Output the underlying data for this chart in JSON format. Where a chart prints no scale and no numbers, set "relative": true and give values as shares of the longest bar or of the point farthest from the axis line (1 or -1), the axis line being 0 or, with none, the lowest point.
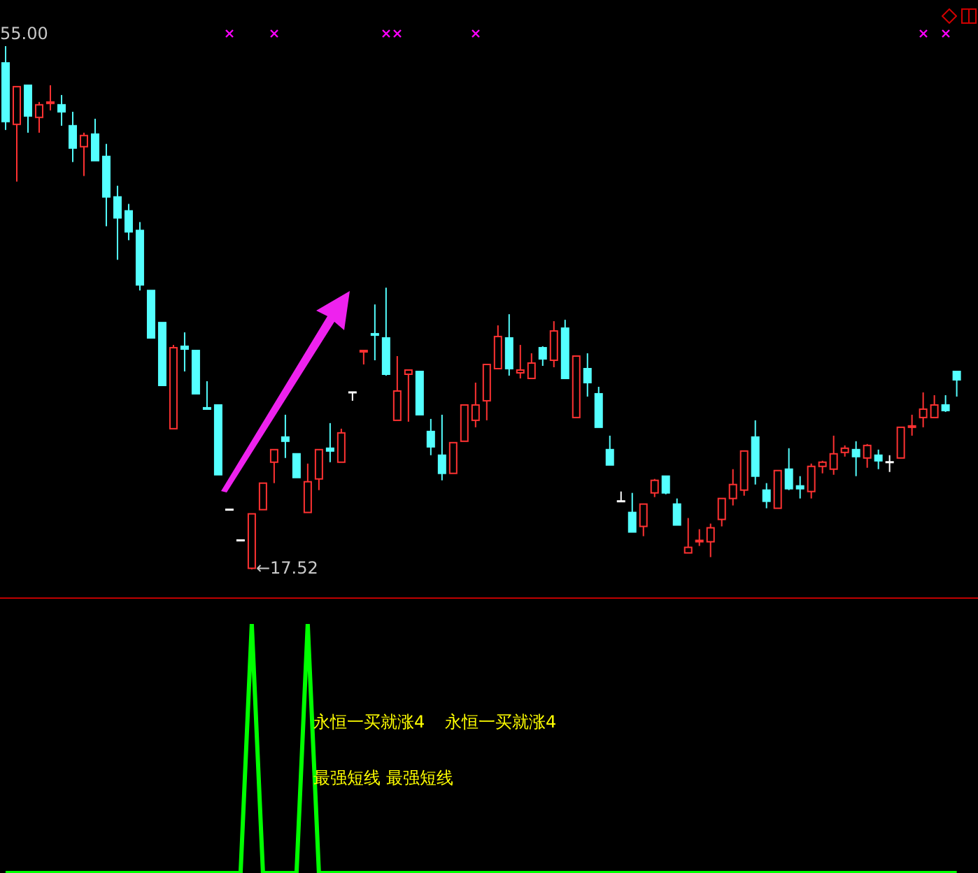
{
  "chart_data": [
    {
      "type": "candlestick",
      "categories": [
        null,
        null,
        null,
        null,
        null,
        null,
        null,
        null,
        null,
        null,
        null,
        null,
        null,
        null,
        null,
        null,
        null,
        null,
        null,
        null,
        null,
        null,
        null,
        null,
        null,
        null,
        null,
        null,
        null,
        null,
        null,
        null,
        null,
        null,
        null,
        null,
        null,
        null,
        null,
        null,
        null,
        null,
        null,
        null,
        null,
        null,
        null,
        null,
        null,
        null,
        null,
        null,
        null,
        null,
        null,
        null,
        null,
        null,
        null,
        null,
        null,
        null,
        null,
        null,
        null,
        null,
        null,
        null,
        null,
        null,
        null,
        null,
        null,
        null,
        null,
        null,
        null,
        null,
        null,
        null,
        null,
        null,
        null,
        null,
        null,
        null
      ],
      "ohlc": [
        [
          53.8,
          55.0,
          49.0,
          49.6
        ],
        [
          49.4,
          52.1,
          45.3,
          52.1
        ],
        [
          52.2,
          52.2,
          48.8,
          50.0
        ],
        [
          49.9,
          51.0,
          48.8,
          50.8
        ],
        [
          50.9,
          52.2,
          50.4,
          51.0
        ],
        [
          50.8,
          51.5,
          49.3,
          50.3
        ],
        [
          49.3,
          50.3,
          46.7,
          47.7
        ],
        [
          47.8,
          48.8,
          45.7,
          48.6
        ],
        [
          48.7,
          49.8,
          46.8,
          46.8
        ],
        [
          47.1,
          48.0,
          42.1,
          44.2
        ],
        [
          44.2,
          45.0,
          39.7,
          42.7
        ],
        [
          43.2,
          43.7,
          41.1,
          41.7
        ],
        [
          41.8,
          42.4,
          37.5,
          37.9
        ],
        [
          37.5,
          37.5,
          34.1,
          34.1
        ],
        [
          35.2,
          35.2,
          30.7,
          30.7
        ],
        [
          27.6,
          33.6,
          27.6,
          33.4
        ],
        [
          33.5,
          34.5,
          31.7,
          33.3
        ],
        [
          33.2,
          33.2,
          30.1,
          30.1
        ],
        [
          29.1,
          31.0,
          29.0,
          29.0
        ],
        [
          29.3,
          29.3,
          24.3,
          24.3
        ],
        [
          21.8,
          21.8,
          21.8,
          21.8
        ],
        [
          19.6,
          19.6,
          19.6,
          19.6
        ],
        [
          17.6,
          21.5,
          17.52,
          21.5
        ],
        [
          21.8,
          23.7,
          21.8,
          23.7
        ],
        [
          25.2,
          26.1,
          23.7,
          26.1
        ],
        [
          27.0,
          28.6,
          25.5,
          26.7
        ],
        [
          25.8,
          25.8,
          24.1,
          24.1
        ],
        [
          21.6,
          25.1,
          21.6,
          23.8
        ],
        [
          24.0,
          26.1,
          23.2,
          26.1
        ],
        [
          26.2,
          28.0,
          25.2,
          26.0
        ],
        [
          25.2,
          27.6,
          25.2,
          27.3
        ],
        [
          30.2,
          30.2,
          29.6,
          30.2
        ],
        [
          33.1,
          33.2,
          32.2,
          33.2
        ],
        [
          34.4,
          36.5,
          32.5,
          34.3
        ],
        [
          34.1,
          37.7,
          31.4,
          31.5
        ],
        [
          28.2,
          32.8,
          28.2,
          30.3
        ],
        [
          31.5,
          31.8,
          28.1,
          31.8
        ],
        [
          31.7,
          31.7,
          28.6,
          28.6
        ],
        [
          27.4,
          28.3,
          25.7,
          26.3
        ],
        [
          25.7,
          28.6,
          23.9,
          24.4
        ],
        [
          24.4,
          26.6,
          24.4,
          26.6
        ],
        [
          26.7,
          29.3,
          26.7,
          29.3
        ],
        [
          28.2,
          30.9,
          27.7,
          29.3
        ],
        [
          29.6,
          32.2,
          28.2,
          32.2
        ],
        [
          31.9,
          35.0,
          31.9,
          34.2
        ],
        [
          34.1,
          35.8,
          31.4,
          31.9
        ],
        [
          31.6,
          33.6,
          31.2,
          31.8
        ],
        [
          31.2,
          33.0,
          31.2,
          32.3
        ],
        [
          33.4,
          33.5,
          32.1,
          32.6
        ],
        [
          32.5,
          35.3,
          32.0,
          34.6
        ],
        [
          34.8,
          35.4,
          31.2,
          31.2
        ],
        [
          28.4,
          32.8,
          28.4,
          32.8
        ],
        [
          31.9,
          33.0,
          29.9,
          30.9
        ],
        [
          30.1,
          30.6,
          27.7,
          27.7
        ],
        [
          26.1,
          27.1,
          25.0,
          25.0
        ],
        [
          22.4,
          23.1,
          22.4,
          22.4
        ],
        [
          21.6,
          23.0,
          20.2,
          20.2
        ],
        [
          20.6,
          22.2,
          19.9,
          22.2
        ],
        [
          23.0,
          24.0,
          22.7,
          23.9
        ],
        [
          24.2,
          24.2,
          22.9,
          23.0
        ],
        [
          22.2,
          22.6,
          20.7,
          20.7
        ],
        [
          18.7,
          21.2,
          18.7,
          19.1
        ],
        [
          19.5,
          20.4,
          19.2,
          19.6
        ],
        [
          19.5,
          20.8,
          18.4,
          20.5
        ],
        [
          21.1,
          22.6,
          20.6,
          22.6
        ],
        [
          22.6,
          24.7,
          22.1,
          23.6
        ],
        [
          23.2,
          26.0,
          22.8,
          26.0
        ],
        [
          27.0,
          28.2,
          23.6,
          24.2
        ],
        [
          23.2,
          23.7,
          21.9,
          22.4
        ],
        [
          21.9,
          24.6,
          21.9,
          24.6
        ],
        [
          24.7,
          26.2,
          23.2,
          23.3
        ],
        [
          23.5,
          24.2,
          22.6,
          23.3
        ],
        [
          23.1,
          25.1,
          22.6,
          24.9
        ],
        [
          24.9,
          25.3,
          24.4,
          25.2
        ],
        [
          24.7,
          27.1,
          24.3,
          25.8
        ],
        [
          25.9,
          26.4,
          25.6,
          26.2
        ],
        [
          26.1,
          26.7,
          24.2,
          25.6
        ],
        [
          25.5,
          26.5,
          24.8,
          26.4
        ],
        [
          25.7,
          26.1,
          24.7,
          25.3
        ],
        [
          25.2,
          25.7,
          24.5,
          25.2
        ],
        [
          25.5,
          27.7,
          25.5,
          27.7
        ],
        [
          27.7,
          28.6,
          27.1,
          27.8
        ],
        [
          28.4,
          30.2,
          27.7,
          29.0
        ],
        [
          28.4,
          30.0,
          28.4,
          29.3
        ],
        [
          29.3,
          30.0,
          28.8,
          28.9
        ],
        [
          31.7,
          31.7,
          29.9,
          31.1
        ]
      ],
      "colors": [
        "#54ffff",
        "#ff3232",
        "#54ffff",
        "#ff3232",
        "#ff3232",
        "#54ffff",
        "#54ffff",
        "#ff3232",
        "#54ffff",
        "#54ffff",
        "#54ffff",
        "#54ffff",
        "#54ffff",
        "#54ffff",
        "#54ffff",
        "#ff3232",
        "#54ffff",
        "#54ffff",
        "#54ffff",
        "#54ffff",
        "#ffffff",
        "#ffffff",
        "#ff3232",
        "#ff3232",
        "#ff3232",
        "#54ffff",
        "#54ffff",
        "#ff3232",
        "#ff3232",
        "#54ffff",
        "#ff3232",
        "#ffffff",
        "#ff3232",
        "#54ffff",
        "#54ffff",
        "#ff3232",
        "#ff3232",
        "#54ffff",
        "#54ffff",
        "#54ffff",
        "#ff3232",
        "#ff3232",
        "#ff3232",
        "#ff3232",
        "#ff3232",
        "#54ffff",
        "#ff3232",
        "#ff3232",
        "#54ffff",
        "#ff3232",
        "#54ffff",
        "#ff3232",
        "#54ffff",
        "#54ffff",
        "#54ffff",
        "#ffffff",
        "#54ffff",
        "#ff3232",
        "#ff3232",
        "#54ffff",
        "#54ffff",
        "#ff3232",
        "#ff3232",
        "#ff3232",
        "#ff3232",
        "#ff3232",
        "#ff3232",
        "#54ffff",
        "#54ffff",
        "#ff3232",
        "#54ffff",
        "#54ffff",
        "#ff3232",
        "#ff3232",
        "#ff3232",
        "#ff3232",
        "#54ffff",
        "#ff3232",
        "#54ffff",
        "#ffffff",
        "#ff3232",
        "#ff3232",
        "#ff3232",
        "#ff3232",
        "#54ffff",
        "#54ffff"
      ],
      "annotations": [
        "55.00",
        "←17.52"
      ]
    },
    {
      "type": "line",
      "relative": true,
      "categories": [
        null,
        null,
        null,
        null,
        null,
        null,
        null,
        null,
        null,
        null,
        null,
        null,
        null,
        null,
        null,
        null,
        null,
        null,
        null,
        null,
        null,
        null,
        null,
        null,
        null,
        null,
        null,
        null,
        null,
        null,
        null,
        null,
        null,
        null,
        null,
        null,
        null,
        null,
        null,
        null,
        null,
        null,
        null,
        null,
        null,
        null,
        null,
        null,
        null,
        null,
        null,
        null,
        null,
        null,
        null,
        null,
        null,
        null,
        null,
        null,
        null,
        null,
        null,
        null,
        null,
        null,
        null,
        null,
        null,
        null,
        null,
        null,
        null,
        null,
        null,
        null,
        null,
        null,
        null,
        null,
        null,
        null,
        null,
        null,
        null,
        null
      ],
      "series": [
        {
          "color": "#00ff00",
          "values": [
            0,
            0,
            0,
            0,
            0,
            0,
            0,
            0,
            0,
            0,
            0,
            0,
            0,
            0,
            0,
            0,
            0,
            0,
            0,
            0,
            0,
            0,
            1,
            0,
            0,
            0,
            0,
            1,
            0,
            0,
            0,
            0,
            0,
            0,
            0,
            0,
            0,
            0,
            0,
            0,
            0,
            0,
            0,
            0,
            0,
            0,
            0,
            0,
            0,
            0,
            0,
            0,
            0,
            0,
            0,
            0,
            0,
            0,
            0,
            0,
            0,
            0,
            0,
            0,
            0,
            0,
            0,
            0,
            0,
            0,
            0,
            0,
            0,
            0,
            0,
            0,
            0,
            0,
            0,
            0,
            0,
            0,
            0,
            0,
            0,
            0
          ]
        }
      ],
      "annotations": [
        "永恒一买就涨4",
        "永恒一买就涨4",
        "最强短线",
        "最强短线"
      ]
    }
  ]
}
